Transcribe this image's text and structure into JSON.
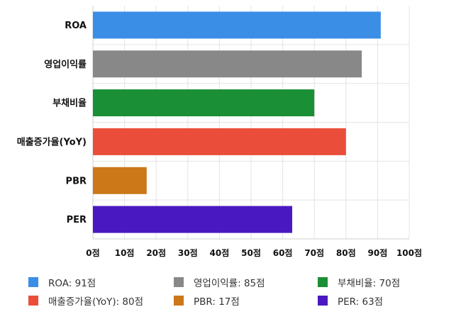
{
  "chart_data": {
    "type": "bar",
    "orientation": "horizontal",
    "categories": [
      "ROA",
      "영업이익률",
      "부채비율",
      "매출증가율(YoY)",
      "PBR",
      "PER"
    ],
    "values": [
      91,
      85,
      70,
      80,
      17,
      63
    ],
    "colors": [
      "#3a8ee6",
      "#888888",
      "#1a8f35",
      "#ea4e3a",
      "#cc7718",
      "#4a18c0"
    ],
    "x_ticks": [
      "0점",
      "10점",
      "20점",
      "30점",
      "40점",
      "50점",
      "60점",
      "70점",
      "80점",
      "90점",
      "100점"
    ],
    "xlim": [
      0,
      100
    ],
    "grid": true,
    "legend_position": "bottom",
    "legend": [
      "ROA: 91점",
      "영업이익률: 85점",
      "부채비율: 70점",
      "매출증가율(YoY): 80점",
      "PBR: 17점",
      "PER: 63점"
    ]
  }
}
